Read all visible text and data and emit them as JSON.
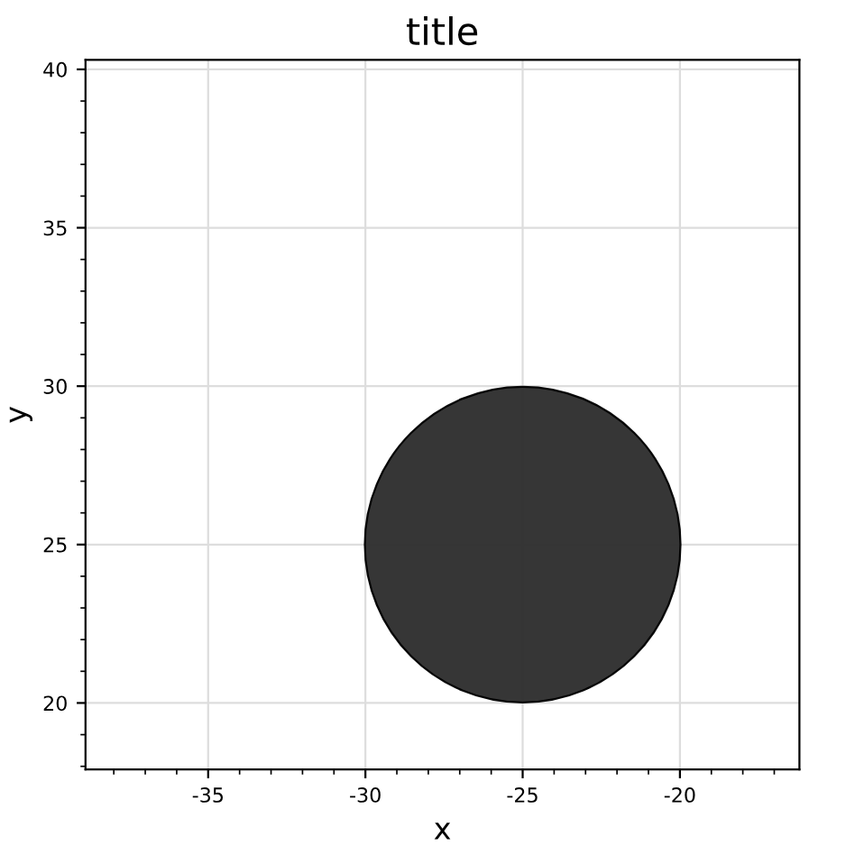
{
  "chart_data": {
    "type": "bubble",
    "title": "title",
    "xlabel": "x",
    "ylabel": "y",
    "x": [
      -25
    ],
    "values": [
      25
    ],
    "sizes": [
      1
    ],
    "color": "#2b2b2b",
    "xlim": [
      -38.9,
      -16.2
    ],
    "ylim": [
      17.9,
      40.3
    ],
    "xticks": [
      -35,
      -30,
      -25,
      -20
    ],
    "yticks": [
      20,
      25,
      30,
      35,
      40
    ],
    "grid": true
  }
}
